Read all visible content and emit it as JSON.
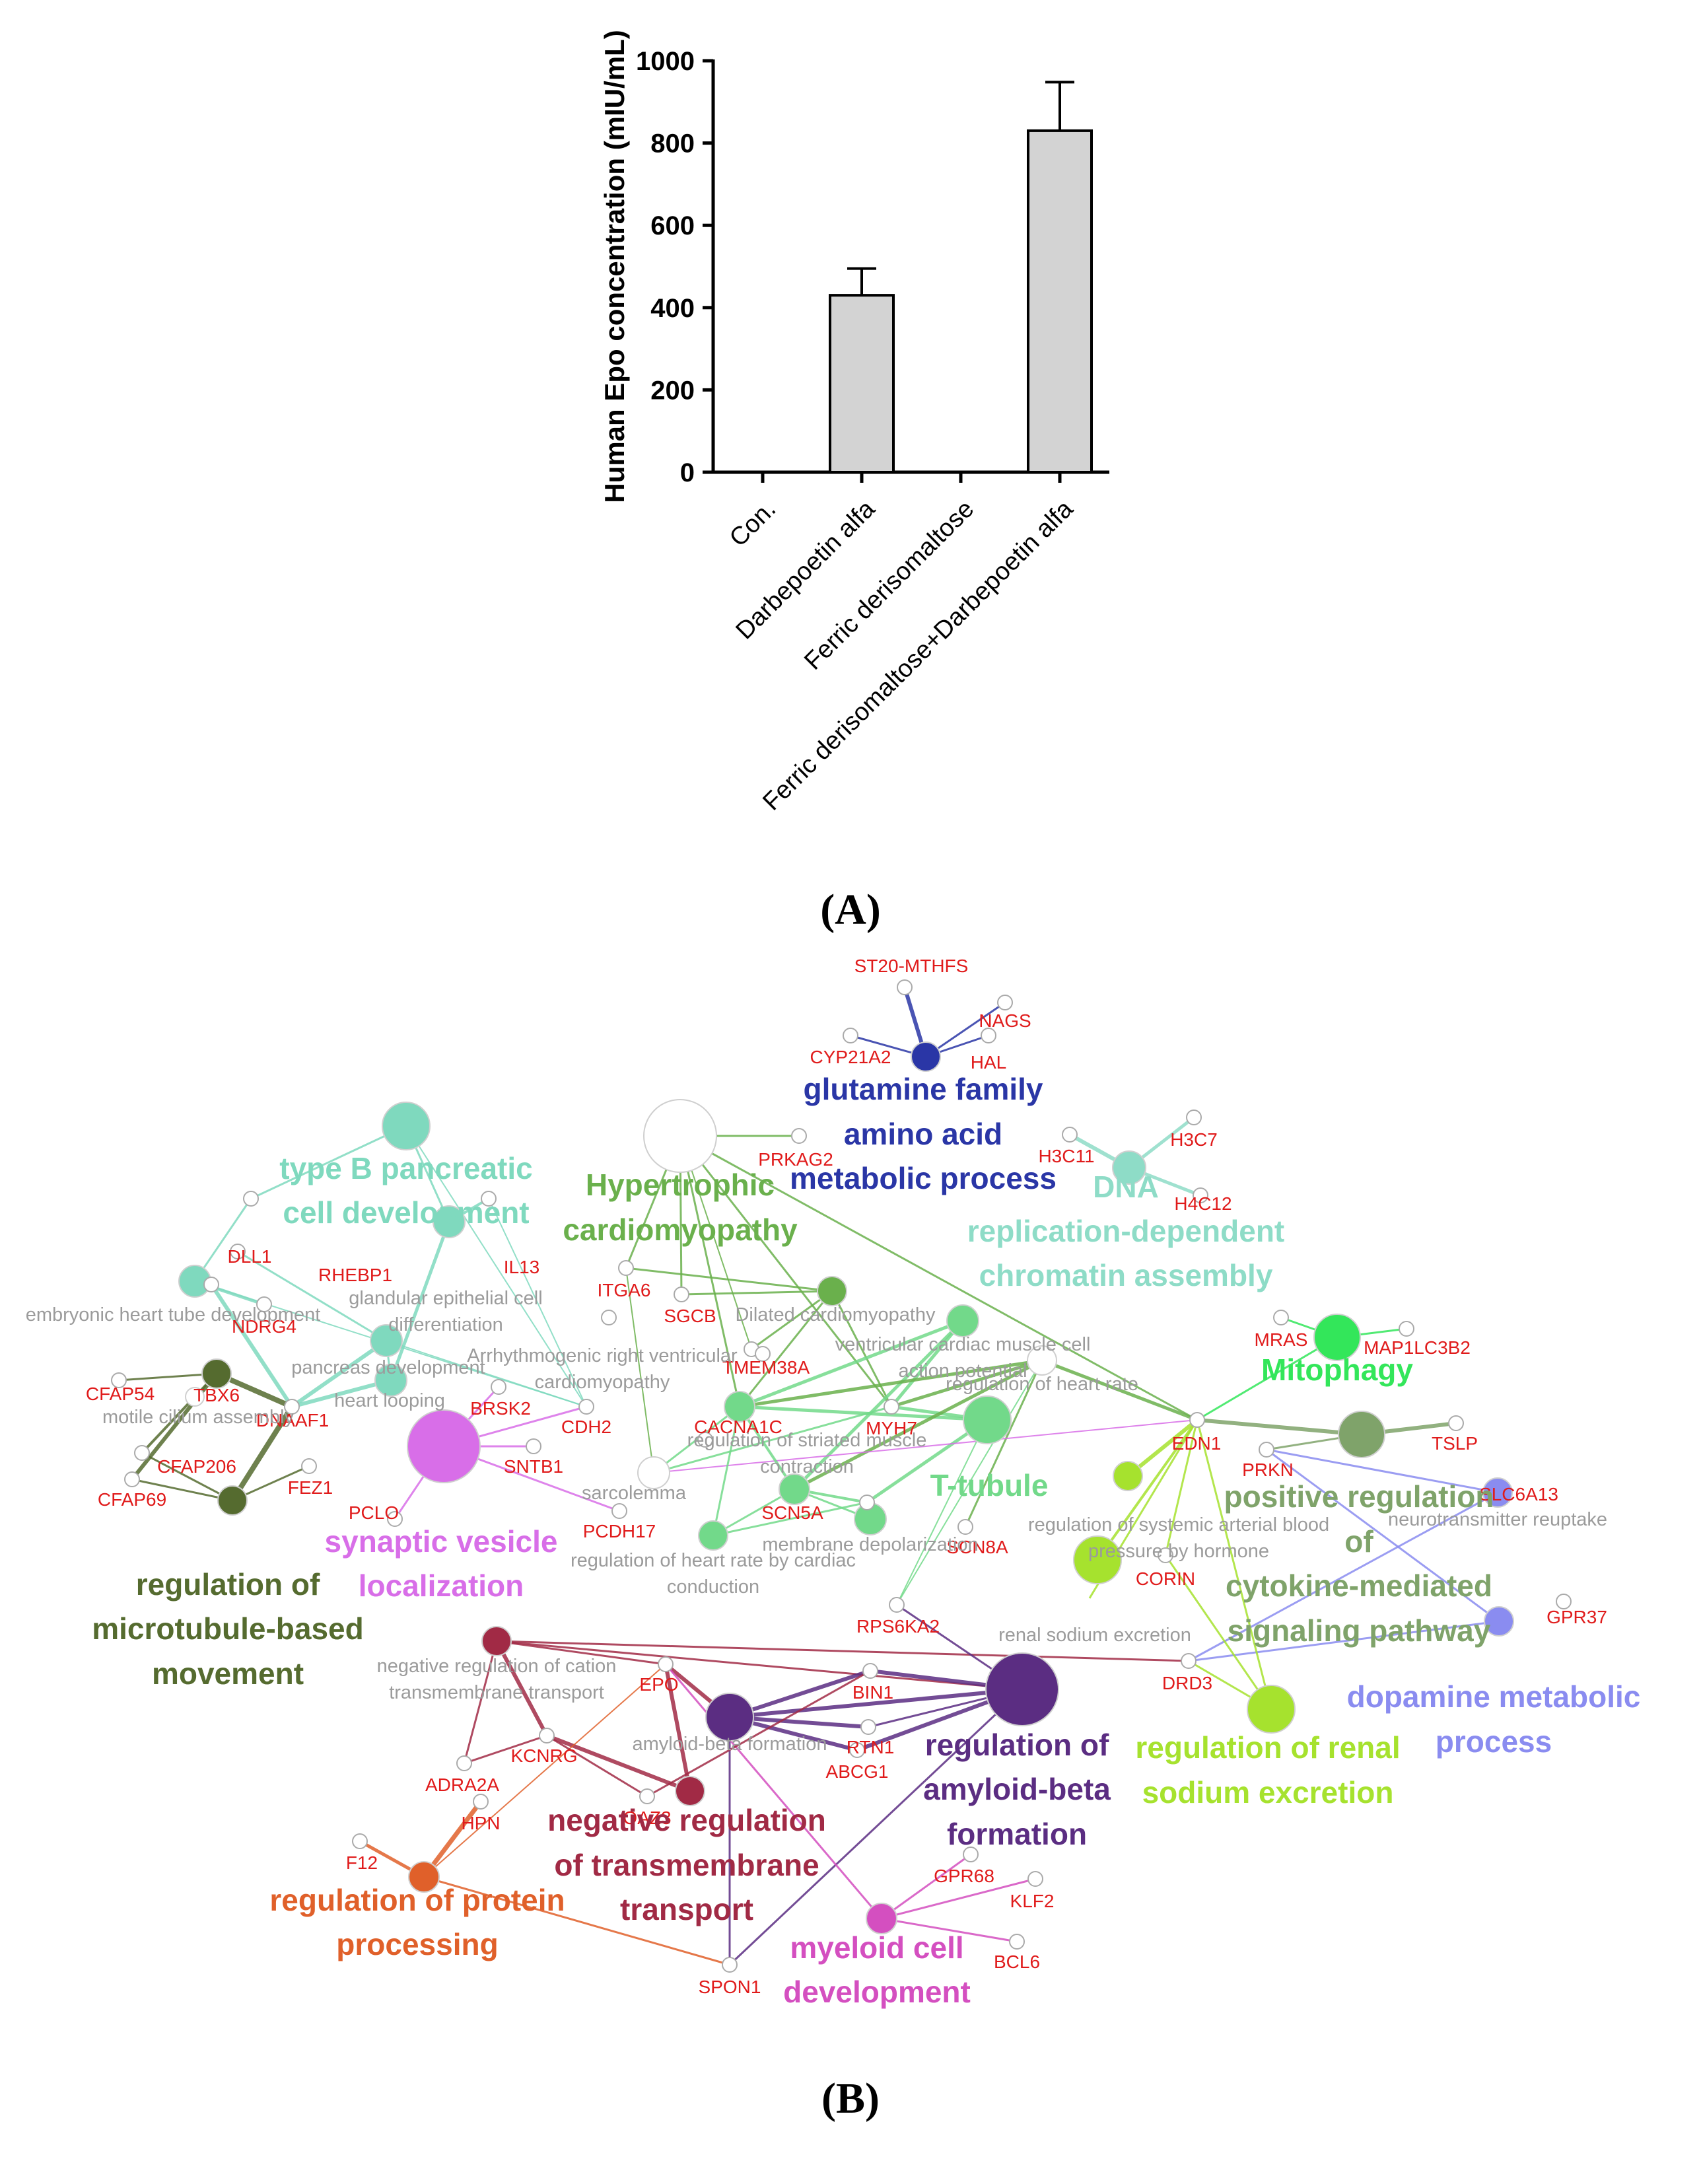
{
  "panel_a_caption": "(A)",
  "panel_b_caption": "(B)",
  "chart_data": [
    {
      "type": "bar",
      "panel": "(A)",
      "ylabel": "Human Epo concentration (mIU/mL)",
      "ylim": [
        0,
        1000
      ],
      "yticks": [
        0,
        200,
        400,
        600,
        800,
        1000
      ],
      "categories": [
        "Con.",
        "Darbepoetin alfa",
        "Ferric derisomaltose",
        "Ferric derisomaltose+Darbepoetin alfa"
      ],
      "values": [
        0,
        430,
        0,
        830
      ],
      "error_plus": [
        0,
        65,
        0,
        118
      ],
      "bar_color": "#d3d3d3",
      "grid": false
    },
    {
      "type": "network",
      "panel": "(B)",
      "clusters": [
        {
          "label": "glutamine family amino acid metabolic process",
          "color": "#2a36a6"
        },
        {
          "label": "type B pancreatic cell development",
          "color": "#7fd9be"
        },
        {
          "label": "Hypertrophic cardiomyopathy",
          "color": "#6ab04c"
        },
        {
          "label": "DNA replication-dependent chromatin assembly",
          "color": "#8edcc7"
        },
        {
          "label": "Mitophagy",
          "color": "#33e65a"
        },
        {
          "label": "positive regulation of cytokine-mediated signaling pathway",
          "color": "#7fa36a"
        },
        {
          "label": "T-tubule",
          "color": "#72d98a"
        },
        {
          "label": "synaptic vesicle localization",
          "color": "#d86ee8"
        },
        {
          "label": "regulation of microtubule-based movement",
          "color": "#556b2f"
        },
        {
          "label": "dopamine metabolic process",
          "color": "#8a8cf0"
        },
        {
          "label": "regulation of renal sodium excretion",
          "color": "#a6e22e"
        },
        {
          "label": "regulation of amyloid-beta formation",
          "color": "#5b2d82"
        },
        {
          "label": "negative regulation of transmembrane transport",
          "color": "#a12a45"
        },
        {
          "label": "regulation of protein processing",
          "color": "#e0602a"
        },
        {
          "label": "myeloid cell development",
          "color": "#d44fc0"
        }
      ],
      "terms": [
        "embryonic heart tube development",
        "glandular epithelial cell differentiation",
        "pancreas development",
        "heart looping",
        "motile cilium assembly",
        "Arrhythmogenic right ventricular cardiomyopathy",
        "Dilated cardiomyopathy",
        "ventricular cardiac muscle cell action potential",
        "regulation of heart rate",
        "regulation of striated muscle contraction",
        "sarcolemma",
        "membrane depolarization",
        "regulation of heart rate by cardiac conduction",
        "regulation of systemic arterial blood pressure by hormone",
        "neurotransmitter reuptake",
        "renal sodium excretion",
        "negative regulation of cation transmembrane transport",
        "amyloid-beta formation"
      ],
      "genes": [
        "ST20-MTHFS",
        "NAGS",
        "CYP21A2",
        "HAL",
        "PRKAG2",
        "H3C11",
        "H3C7",
        "H4C12",
        "DLL1",
        "RHEBP1",
        "IL13",
        "ITGA6",
        "SGCB",
        "NDRG4",
        "TMEM38A",
        "TBX6",
        "CFAP54",
        "DNAAF1",
        "BRSK2",
        "CDH2",
        "CACNA1C",
        "MYH7",
        "CFAP206",
        "CFAP69",
        "FEZ1",
        "PCLO",
        "SNTB1",
        "PCDH17",
        "SCN5A",
        "EDN1",
        "PRKN",
        "TSLP",
        "MRAS",
        "MAP1LC3B2",
        "SLC6A13",
        "CORIN",
        "SCN8A",
        "RPS6KA2",
        "GPR37",
        "DRD3",
        "EPO",
        "BIN1",
        "RTN1",
        "ABCG1",
        "KCNRG",
        "ADRA2A",
        "OAZ3",
        "HPN",
        "F12",
        "GPR68",
        "KLF2",
        "BCL6",
        "SPON1"
      ]
    }
  ]
}
